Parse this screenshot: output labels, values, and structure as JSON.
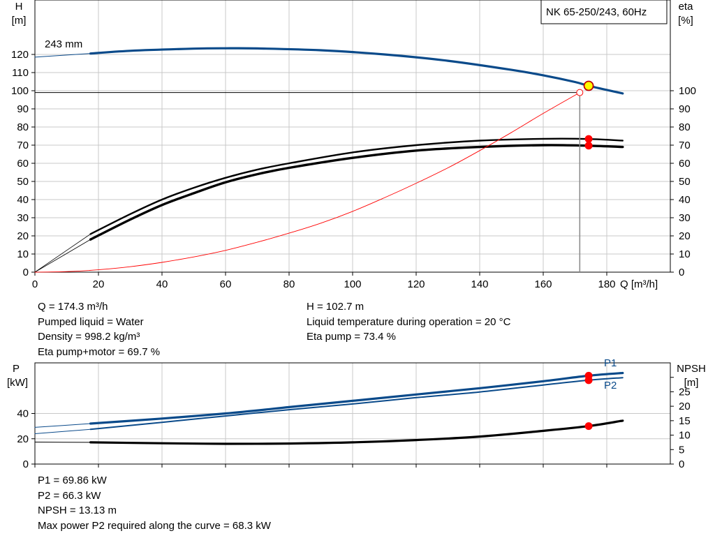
{
  "chart_data": [
    {
      "type": "line",
      "title": "NK 65-250/243, 60Hz",
      "xlabel": "Q [m³/h]",
      "ylabel_left": [
        "H",
        "[m]"
      ],
      "ylabel_right": [
        "eta",
        "[%]"
      ],
      "xlim": [
        0,
        200
      ],
      "ylim_left": [
        0,
        150
      ],
      "ylim_right": [
        0,
        150
      ],
      "x_ticks": [
        0,
        20,
        40,
        60,
        80,
        100,
        120,
        140,
        160,
        180
      ],
      "y_ticks_left": [
        0,
        10,
        20,
        30,
        40,
        50,
        60,
        70,
        80,
        90,
        100,
        110,
        120
      ],
      "y_ticks_right": [
        0,
        10,
        20,
        30,
        40,
        50,
        60,
        70,
        80,
        90,
        100
      ],
      "curve_label": "243 mm",
      "grid": true,
      "series": [
        {
          "key": "head",
          "axis": "left",
          "color": "#0a4a8a",
          "x": [
            17.5,
            30,
            50,
            60,
            70,
            90,
            110,
            130,
            150,
            160,
            170,
            174.3,
            185
          ],
          "y": [
            120.5,
            122,
            123.2,
            123.4,
            123.3,
            122.3,
            120,
            116.5,
            111.5,
            108.5,
            104.8,
            102.7,
            98.5
          ]
        },
        {
          "key": "head-extension",
          "axis": "left",
          "color": "#0a4a8a",
          "x": [
            0,
            17.5
          ],
          "y": [
            118.5,
            120.5
          ]
        },
        {
          "key": "eta-pump",
          "axis": "right",
          "color": "#000000",
          "x": [
            17.5,
            30,
            40,
            50,
            60,
            70,
            80,
            100,
            120,
            140,
            160,
            174.3,
            185
          ],
          "y": [
            21,
            32,
            40,
            46.5,
            52,
            56.5,
            60,
            66,
            70,
            72.5,
            73.5,
            73.4,
            72.5
          ]
        },
        {
          "key": "eta-pump-motor",
          "axis": "right",
          "color": "#000000",
          "x": [
            17.5,
            30,
            40,
            50,
            60,
            70,
            80,
            100,
            120,
            140,
            160,
            174.3,
            185
          ],
          "y": [
            18,
            29,
            37,
            43.5,
            49.5,
            54,
            57.5,
            63,
            67,
            69,
            70,
            69.7,
            69
          ]
        },
        {
          "key": "eta-extension",
          "axis": "right",
          "color": "#000000",
          "x": [
            0,
            17.5
          ],
          "y": [
            0,
            21
          ]
        },
        {
          "key": "eta-motor-extension",
          "axis": "right",
          "color": "#000000",
          "x": [
            0,
            17.5
          ],
          "y": [
            0,
            18
          ]
        },
        {
          "key": "system-curve",
          "axis": "left",
          "color": "#ff0000",
          "x": [
            0,
            10,
            20,
            30,
            40,
            50,
            60,
            70,
            80,
            90,
            100,
            110,
            120,
            130,
            140,
            150,
            160,
            171.5
          ],
          "y": [
            0,
            0.3,
            1.3,
            3,
            5.4,
            8.4,
            12,
            16.5,
            21.5,
            27,
            33.5,
            41,
            49,
            57.5,
            67,
            77,
            87.5,
            99
          ]
        }
      ],
      "operating_point": {
        "q": 174.3,
        "h": 102.7,
        "eta_pump": 73.4,
        "eta_pump_motor": 69.7
      },
      "system_point": {
        "q": 171.5,
        "h": 99
      }
    },
    {
      "type": "line",
      "ylabel_left": [
        "P",
        "[kW]"
      ],
      "ylabel_right": [
        "NPSH",
        "[m]"
      ],
      "xlim": [
        0,
        200
      ],
      "ylim_left": [
        0,
        80
      ],
      "ylim_right": [
        0,
        35
      ],
      "y_ticks_left": [
        0,
        20,
        40
      ],
      "y_ticks_right": [
        0,
        5,
        10,
        15,
        20,
        25
      ],
      "series": [
        {
          "key": "P1",
          "name": "P1",
          "axis": "left",
          "color": "#0a4a8a",
          "x": [
            17.5,
            40,
            60,
            80,
            100,
            120,
            140,
            160,
            174.3,
            185
          ],
          "y": [
            32,
            36,
            40,
            45,
            50,
            55,
            60,
            65.5,
            69.86,
            72
          ]
        },
        {
          "key": "P1-extension",
          "axis": "left",
          "color": "#0a4a8a",
          "x": [
            0,
            17.5
          ],
          "y": [
            29,
            32
          ]
        },
        {
          "key": "P2",
          "name": "P2",
          "axis": "left",
          "color": "#0a4a8a",
          "x": [
            17.5,
            40,
            60,
            80,
            100,
            120,
            140,
            160,
            174.3,
            185
          ],
          "y": [
            27.5,
            33,
            38,
            43,
            47.5,
            52.5,
            57,
            62.5,
            66.3,
            68.3
          ]
        },
        {
          "key": "P2-extension",
          "axis": "left",
          "color": "#0a4a8a",
          "x": [
            0,
            17.5
          ],
          "y": [
            24,
            27.5
          ]
        },
        {
          "key": "NPSH",
          "axis": "right",
          "color": "#000000",
          "x": [
            17.5,
            40,
            60,
            80,
            100,
            120,
            140,
            160,
            174.3,
            185
          ],
          "y": [
            7.5,
            7.2,
            7,
            7.1,
            7.5,
            8.3,
            9.5,
            11.5,
            13.13,
            15
          ]
        },
        {
          "key": "NPSH-extension",
          "axis": "right",
          "color": "#000000",
          "x": [
            0,
            17.5
          ],
          "y": [
            7.6,
            7.5
          ]
        }
      ],
      "operating_point": {
        "q": 174.3,
        "p1": 69.86,
        "p2": 66.3,
        "npsh": 13.13
      }
    }
  ],
  "results_top": {
    "left": [
      "Q = 174.3 m³/h",
      "Pumped liquid = Water",
      "Density = 998.2 kg/m³",
      "Eta pump+motor = 69.7 %"
    ],
    "right": [
      "H = 102.7 m",
      "Liquid temperature during operation = 20 °C",
      "Eta pump = 73.4 %"
    ]
  },
  "results_bottom": [
    "P1 = 69.86 kW",
    "P2 = 66.3 kW",
    "NPSH = 13.13 m",
    "Max power P2 required along the curve = 68.3 kW"
  ]
}
